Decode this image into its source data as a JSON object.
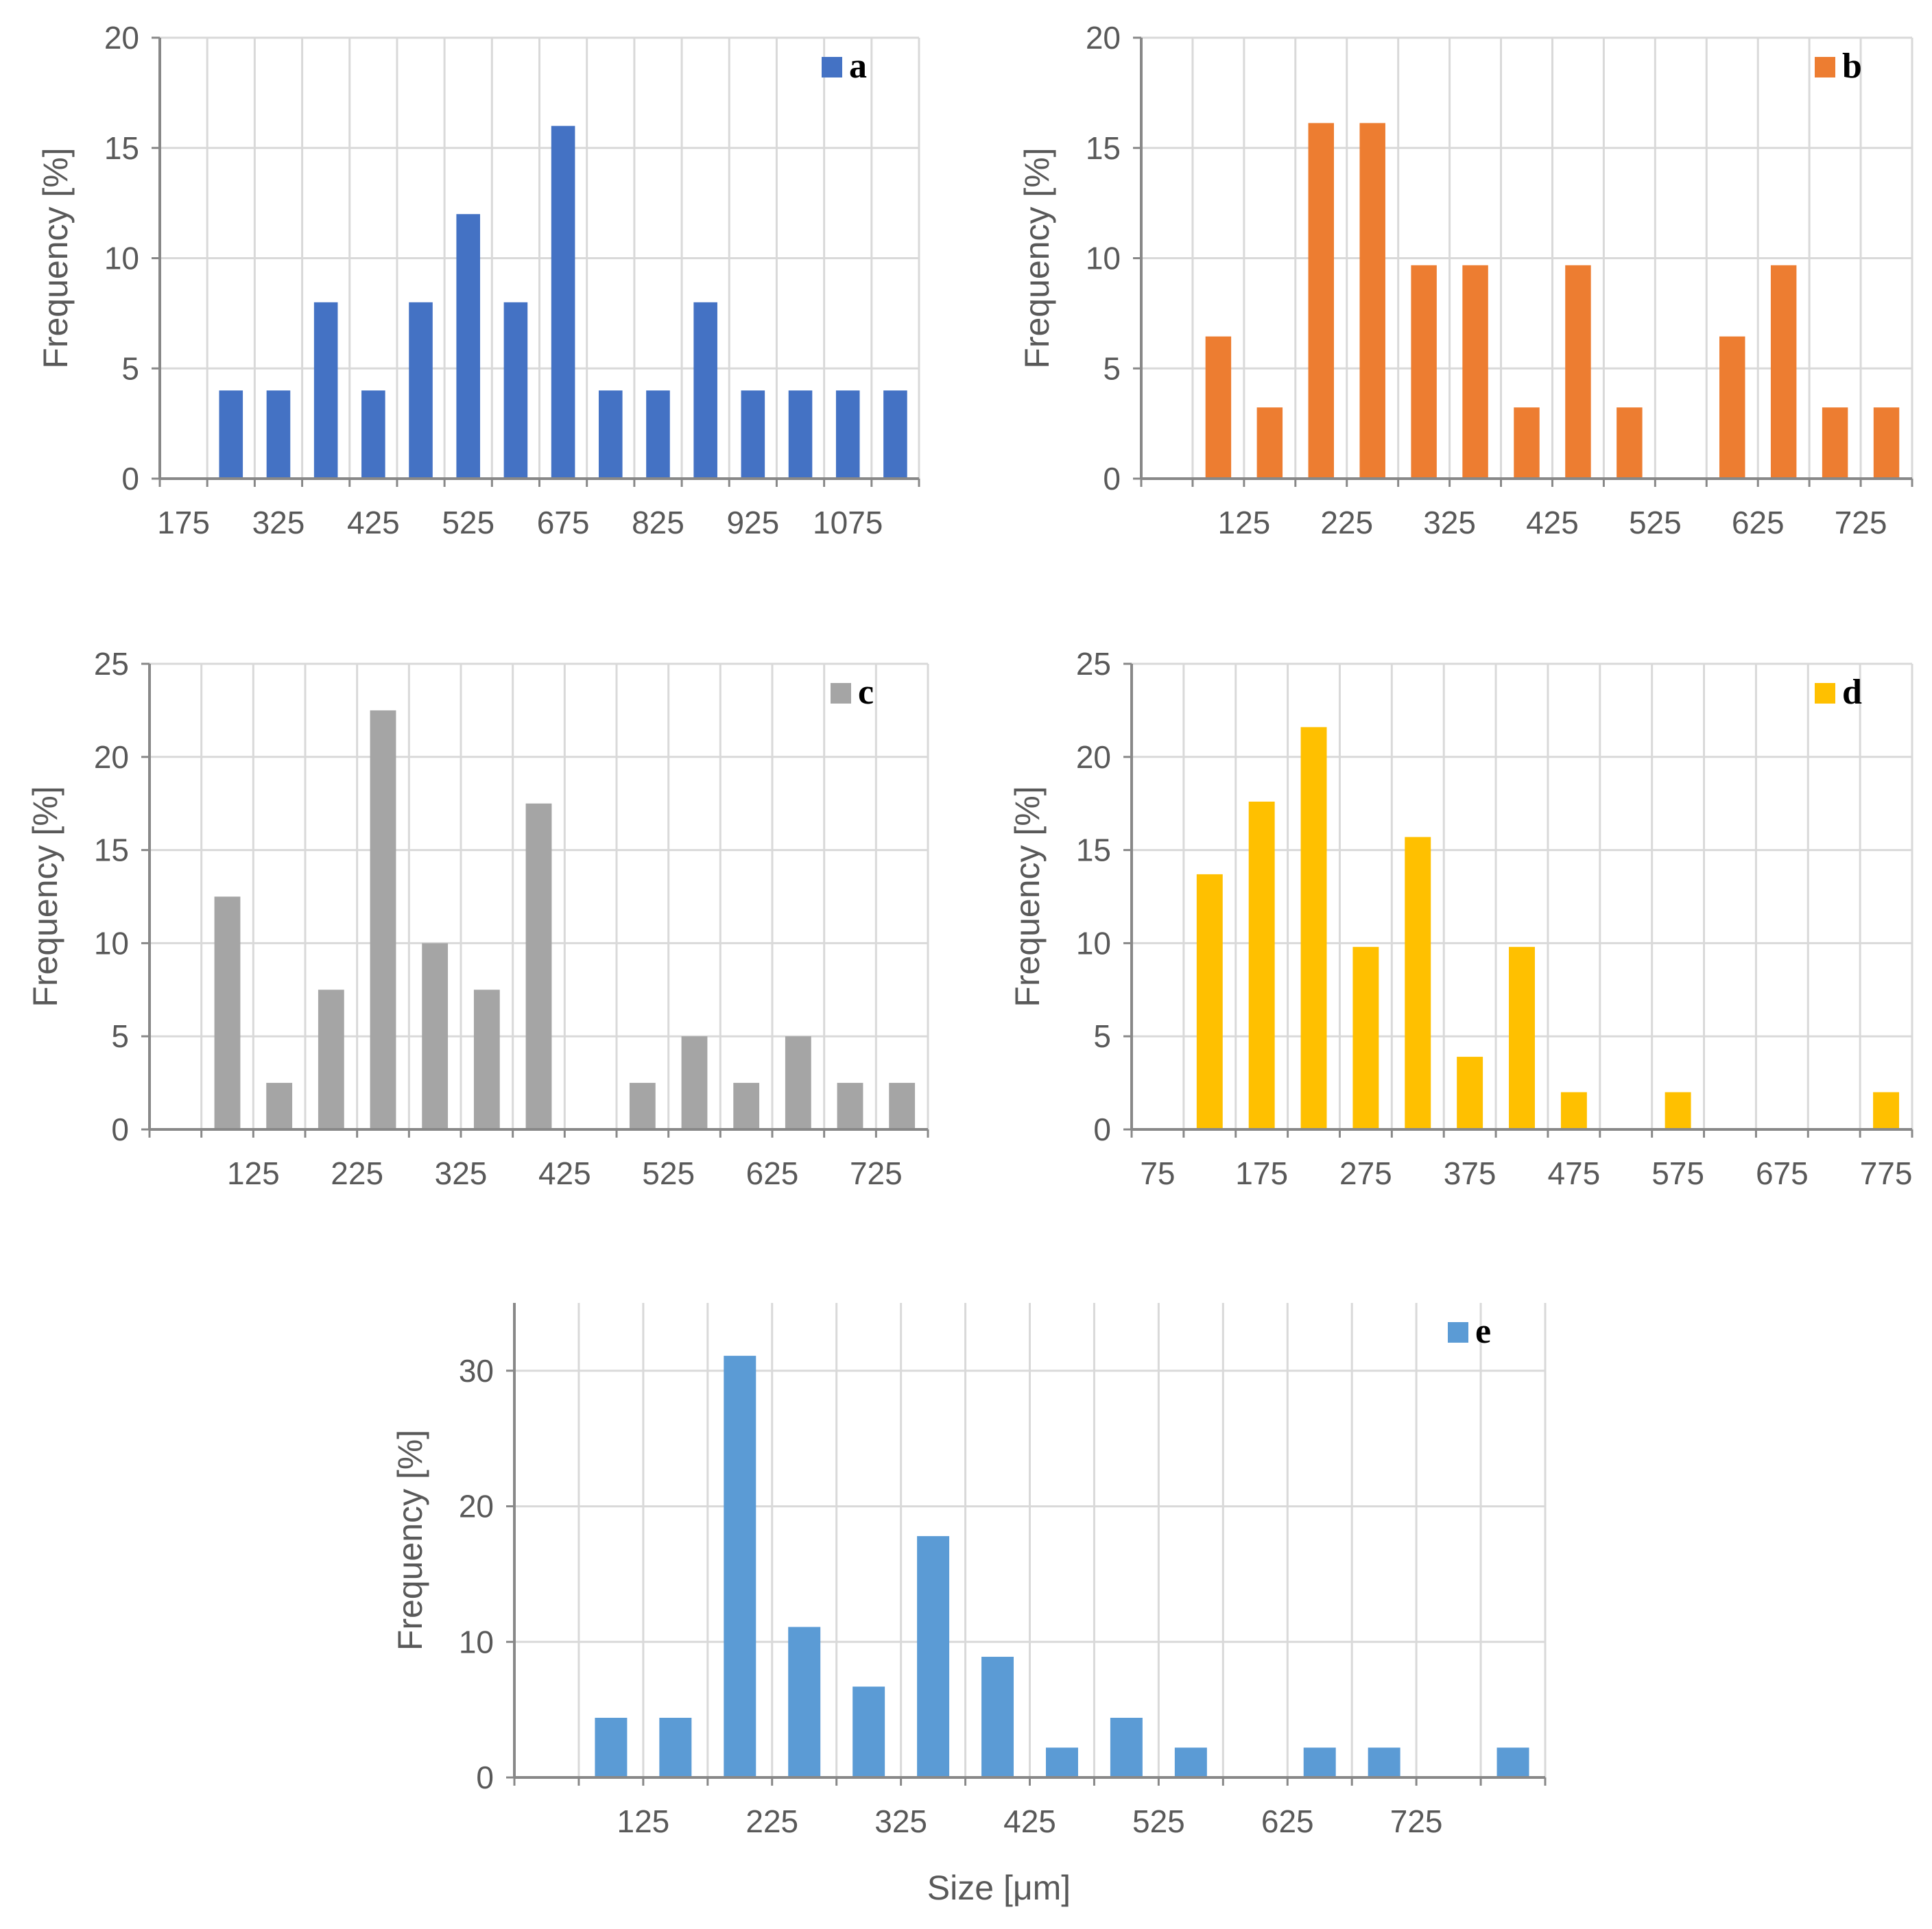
{
  "figure": {
    "xlabel": "Size [μm]"
  },
  "chart_data": [
    {
      "id": "a",
      "type": "bar",
      "legend": "a",
      "color": "#4472C4",
      "ylabel": "Frequency  [%]",
      "ylim": [
        0,
        20
      ],
      "yticks": [
        0,
        5,
        10,
        15,
        20
      ],
      "xticks": [
        "175",
        "325",
        "425",
        "525",
        "675",
        "825",
        "925",
        "1075"
      ],
      "values": [
        4,
        4,
        8,
        4,
        8,
        12,
        8,
        16,
        4,
        4,
        8,
        4,
        4,
        4,
        4
      ]
    },
    {
      "id": "b",
      "type": "bar",
      "legend": "b",
      "color": "#ED7D31",
      "ylabel": "Frequency  [%]",
      "ylim": [
        0,
        20
      ],
      "yticks": [
        0,
        5,
        10,
        15,
        20
      ],
      "xticks": [
        "125",
        "225",
        "325",
        "425",
        "525",
        "625",
        "725"
      ],
      "values": [
        6.45,
        3.23,
        16.13,
        16.13,
        9.68,
        9.68,
        3.23,
        9.68,
        3.23,
        0,
        6.45,
        9.68,
        3.23,
        3.23
      ]
    },
    {
      "id": "c",
      "type": "bar",
      "legend": "c",
      "color": "#A5A5A5",
      "ylabel": "Frequency  [%]",
      "ylim": [
        0,
        25
      ],
      "yticks": [
        0,
        5,
        10,
        15,
        20,
        25
      ],
      "xticks": [
        "125",
        "225",
        "325",
        "425",
        "525",
        "625",
        "725"
      ],
      "values": [
        12.5,
        2.5,
        7.5,
        22.5,
        10,
        7.5,
        17.5,
        0,
        2.5,
        5,
        2.5,
        5,
        2.5,
        2.5
      ]
    },
    {
      "id": "d",
      "type": "bar",
      "legend": "d",
      "color": "#FFC000",
      "ylabel": "Frequency [%]",
      "ylim": [
        0,
        25
      ],
      "yticks": [
        0,
        5,
        10,
        15,
        20,
        25
      ],
      "xticks": [
        "75",
        "175",
        "275",
        "375",
        "475",
        "575",
        "675",
        "775"
      ],
      "values": [
        13.7,
        17.6,
        21.6,
        9.8,
        15.7,
        3.9,
        9.8,
        2,
        0,
        2,
        0,
        0,
        0,
        2
      ]
    },
    {
      "id": "e",
      "type": "bar",
      "legend": "e",
      "color": "#5B9BD5",
      "ylabel": "Frequency [%]",
      "ylim": [
        0,
        35
      ],
      "yticks": [
        0,
        10,
        20,
        30
      ],
      "xticks": [
        "125",
        "225",
        "325",
        "425",
        "525",
        "625",
        "725"
      ],
      "values": [
        4.4,
        4.4,
        31.1,
        11.1,
        6.7,
        17.8,
        8.9,
        2.2,
        4.4,
        2.2,
        0,
        2.2,
        2.2,
        0,
        2.2
      ]
    }
  ]
}
